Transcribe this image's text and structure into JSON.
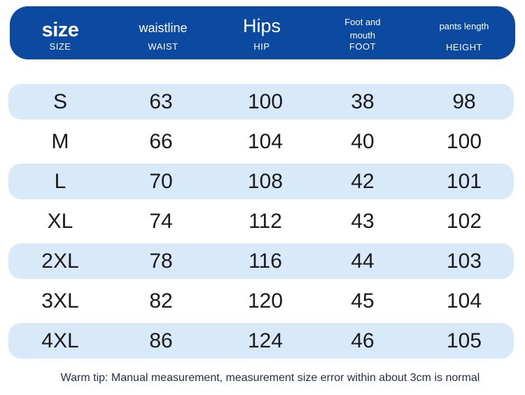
{
  "header": {
    "size": {
      "main": "size",
      "sub": "SIZE"
    },
    "waist": {
      "main": "waistline",
      "sub": "WAIST"
    },
    "hip": {
      "main": "Hips",
      "sub": "HIP"
    },
    "foot": {
      "main": "Foot and mouth",
      "sub": "FOOT"
    },
    "length": {
      "main": "pants length",
      "sub": "HEIGHT"
    }
  },
  "rows": [
    {
      "size": "S",
      "waist": "63",
      "hip": "100",
      "foot": "38",
      "length": "98"
    },
    {
      "size": "M",
      "waist": "66",
      "hip": "104",
      "foot": "40",
      "length": "100"
    },
    {
      "size": "L",
      "waist": "70",
      "hip": "108",
      "foot": "42",
      "length": "101"
    },
    {
      "size": "XL",
      "waist": "74",
      "hip": "112",
      "foot": "43",
      "length": "102"
    },
    {
      "size": "2XL",
      "waist": "78",
      "hip": "116",
      "foot": "44",
      "length": "103"
    },
    {
      "size": "3XL",
      "waist": "82",
      "hip": "120",
      "foot": "45",
      "length": "104"
    },
    {
      "size": "4XL",
      "waist": "86",
      "hip": "124",
      "foot": "46",
      "length": "105"
    }
  ],
  "tip": "Warm tip: Manual measurement, measurement size error within about 3cm is normal",
  "colors": {
    "header_bg": "#0b4aa0",
    "row_shade": "#d8eaf9"
  }
}
